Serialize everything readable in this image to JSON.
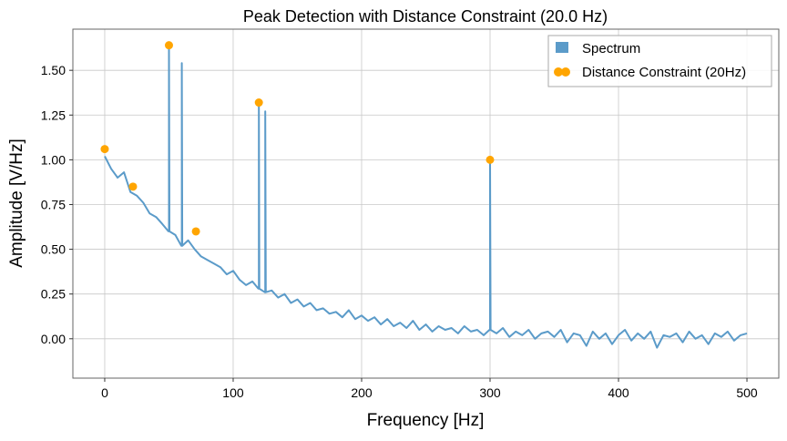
{
  "chart_data": {
    "type": "line",
    "title": "Peak Detection with Distance Constraint (20.0 Hz)",
    "xlabel": "Frequency [Hz]",
    "ylabel": "Amplitude [V/Hz]",
    "xlim": [
      -24.8,
      524.8
    ],
    "ylim": [
      -0.22,
      1.73
    ],
    "xticks": [
      0,
      100,
      200,
      300,
      400,
      500
    ],
    "xtick_labels": [
      "0",
      "100",
      "200",
      "300",
      "400",
      "500"
    ],
    "yticks": [
      0,
      0.25,
      0.5,
      0.75,
      1.0,
      1.25,
      1.5
    ],
    "ytick_labels": [
      "0.00",
      "0.25",
      "0.50",
      "0.75",
      "1.00",
      "1.25",
      "1.50"
    ],
    "grid": true,
    "legend_position": "top-right",
    "series": [
      {
        "name": "Spectrum",
        "style": "line",
        "color": "#5b9bc9",
        "x_step": 5,
        "x_start": 0,
        "y": [
          1.02,
          0.95,
          0.9,
          0.93,
          0.82,
          0.8,
          0.76,
          0.7,
          0.68,
          0.64,
          0.6,
          0.58,
          0.52,
          0.55,
          0.5,
          0.46,
          0.44,
          0.42,
          0.4,
          0.36,
          0.38,
          0.33,
          0.3,
          0.32,
          0.28,
          0.26,
          0.27,
          0.23,
          0.25,
          0.2,
          0.22,
          0.18,
          0.2,
          0.16,
          0.17,
          0.14,
          0.15,
          0.12,
          0.16,
          0.11,
          0.13,
          0.1,
          0.12,
          0.08,
          0.11,
          0.07,
          0.09,
          0.06,
          0.1,
          0.05,
          0.08,
          0.04,
          0.07,
          0.05,
          0.06,
          0.03,
          0.07,
          0.04,
          0.05,
          0.02,
          0.05,
          0.03,
          0.06,
          0.01,
          0.04,
          0.02,
          0.05,
          0.0,
          0.03,
          0.04,
          0.01,
          0.05,
          -0.02,
          0.03,
          0.02,
          -0.04,
          0.04,
          0.0,
          0.03,
          -0.03,
          0.02,
          0.05,
          -0.01,
          0.03,
          0.0,
          0.04,
          -0.05,
          0.02,
          0.01,
          0.03,
          -0.02,
          0.04,
          0.0,
          0.02,
          -0.03,
          0.03,
          0.01,
          0.04,
          -0.01,
          0.02,
          0.03
        ],
        "spikes": [
          [
            50,
            1.64
          ],
          [
            60,
            1.54
          ],
          [
            120,
            1.32
          ],
          [
            125,
            1.27
          ],
          [
            300,
            1.0
          ]
        ]
      },
      {
        "name": "Distance Constraint (20Hz)",
        "style": "scatter",
        "color": "#ffa500",
        "points": [
          [
            0,
            1.06
          ],
          [
            22,
            0.85
          ],
          [
            50,
            1.64
          ],
          [
            71,
            0.6
          ],
          [
            120,
            1.32
          ],
          [
            300,
            1.0
          ]
        ]
      }
    ]
  }
}
